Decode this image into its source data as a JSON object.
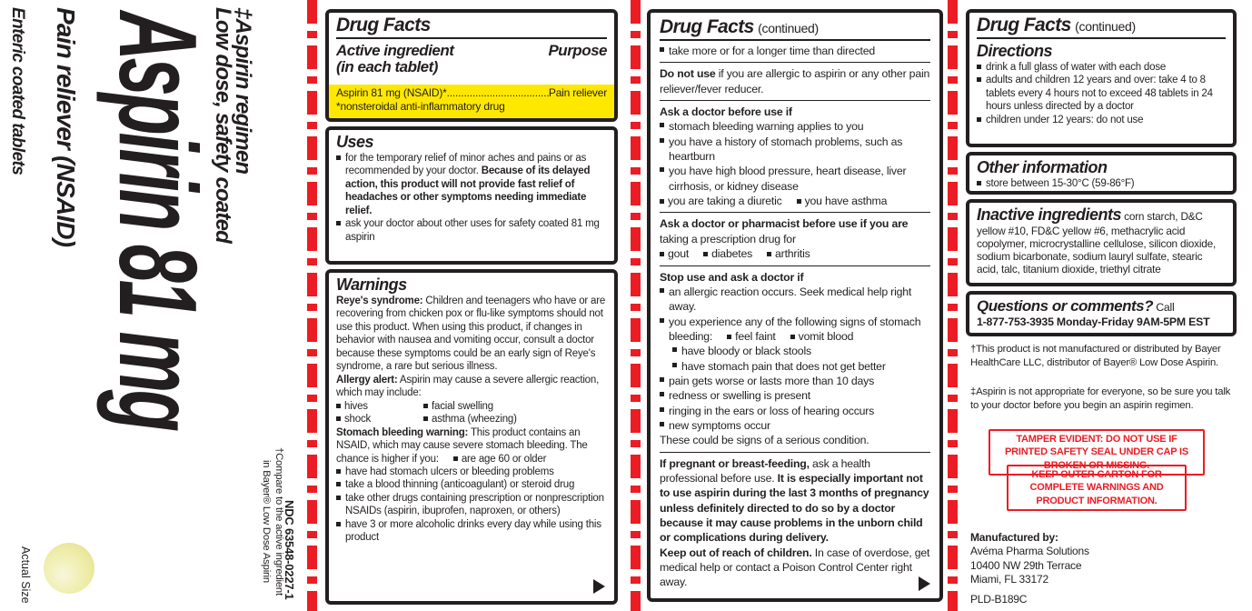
{
  "colors": {
    "highlight_yellow": "#FFE800",
    "perforation_red": "#EC1C24",
    "warning_red": "#EC1C24",
    "ink_black": "#231f20",
    "pill_yellow": "#eeeca6"
  },
  "brand_panel": {
    "enteric": "Enteric coated tablets",
    "pain_reliever": "Pain reliever (NSAID)",
    "title": "Aspirin 81 mg",
    "regimen_line1": "‡Aspirin regimen",
    "regimen_line2": "Low dose, safety coated",
    "ndc": "NDC 63548-0227-1",
    "compare_line1": "†Compare to the active ingredient",
    "compare_line2": "in Bayer® Low Dose Aspirin",
    "actual_size": "Actual Size"
  },
  "panel1": {
    "title": "Drug Facts",
    "active_heading_line1": "Active ingredient",
    "active_heading_line2": "(in each tablet)",
    "purpose_heading": "Purpose",
    "active_row": {
      "name": "Aspirin 81 mg (NSAID)*",
      "leader": "............................................................",
      "purpose": "Pain reliever"
    },
    "active_footnote": "*nonsteroidal anti-inflammatory drug",
    "uses": {
      "title": "Uses",
      "bullet1_normal": "for the temporary relief of minor aches and pains or as recommended by your doctor. ",
      "bullet1_bold": "Because of its delayed action, this product will not provide fast relief of headaches or other symptoms needing immediate relief.",
      "bullet2": "ask your doctor about other uses for safety coated 81 mg aspirin"
    },
    "warnings": {
      "title": "Warnings",
      "reye_label": "Reye's syndrome:",
      "reye_text": " Children and teenagers who have or are recovering from chicken pox or flu-like symptoms should not use this product. When using this product, if changes in behavior with nausea and vomiting occur, consult a doctor because these symptoms could be an early sign of Reye's syndrome, a rare but serious illness.",
      "allergy_label": "Allergy alert:",
      "allergy_text": " Aspirin may cause a severe allergic reaction, which may include:",
      "allergy_items": [
        "hives",
        "facial swelling",
        "shock",
        "asthma (wheezing)"
      ],
      "stomach_label": "Stomach bleeding warning:",
      "stomach_text": " This product contains an NSAID, which may cause severe stomach bleeding. The chance is higher if you:",
      "stomach_inline_item": "are age 60 or older",
      "stomach_items": [
        "have had stomach ulcers or bleeding problems",
        "take a blood thinning (anticoagulant) or steroid drug",
        "take other drugs containing prescription or nonprescription NSAIDs (aspirin, ibuprofen, naproxen, or others)",
        "have 3 or more alcoholic drinks every day while using this product"
      ]
    }
  },
  "panel2": {
    "title": "Drug Facts",
    "continued": "(continued)",
    "carryover_bullet": "take more or for a longer time than directed",
    "do_not_use_label": "Do not use",
    "do_not_use_text": " if you are allergic to aspirin or any other pain reliever/fever reducer.",
    "ask_doctor": {
      "heading": "Ask a doctor before use if",
      "items": [
        "stomach bleeding warning applies to you",
        "you have a history of stomach problems, such as heartburn",
        "you have high blood pressure, heart disease, liver cirrhosis, or kidney disease"
      ],
      "pair": [
        "you are taking a diuretic",
        "you have asthma"
      ]
    },
    "ask_pharmacist": {
      "heading_bold": "Ask a doctor or pharmacist before use if you are",
      "heading_normal": "taking a prescription drug for",
      "items": [
        "gout",
        "diabetes",
        "arthritis"
      ]
    },
    "stop_use": {
      "heading": "Stop use and ask a doctor if",
      "item1": "an allergic reaction occurs. Seek medical help right away.",
      "item2": "you experience any of the following signs of stomach bleeding:",
      "item2_pair": [
        "feel faint",
        "vomit blood"
      ],
      "item2_sub": [
        "have bloody or black stools",
        "have stomach pain that does not get better"
      ],
      "item3": "pain gets worse or lasts more than 10 days",
      "item4": "redness or swelling is present",
      "item5": "ringing in the ears or loss of hearing occurs",
      "item6": "new symptoms occur",
      "footer": "These could be signs of a serious condition."
    },
    "pregnant_label": "If pregnant or breast-feeding,",
    "pregnant_normal": " ask a health professional before use. ",
    "pregnant_bold": "It is especially important not to use aspirin during the last 3 months of pregnancy unless definitely directed to do so by a doctor because it may cause problems in the unborn child or complications during delivery.",
    "keep_label": "Keep out of reach of children.",
    "keep_text": " In case of overdose, get medical help or contact a Poison Control Center right away."
  },
  "panel3": {
    "title": "Drug Facts",
    "continued": "(continued)",
    "directions": {
      "title": "Directions",
      "item1": "drink a full glass of water with each dose",
      "item2": "adults and children 12 years and over: take 4 to 8 tablets every 4 hours not to exceed 48 tablets in 24 hours unless directed by a doctor",
      "item3": "children under 12 years: do not use"
    },
    "other_info": {
      "title": "Other information",
      "item": "store between 15-30°C (59-86°F)"
    },
    "inactive": {
      "title": "Inactive ingredients",
      "text": " corn starch, D&C yellow #10, FD&C yellow #6, methacrylic acid copolymer, microcrystalline cellulose, silicon dioxide, sodium bicarbonate, sodium lauryl sulfate, stearic acid, talc, titanium dioxide, triethyl citrate"
    },
    "questions": {
      "title": "Questions or comments?",
      "call": " Call",
      "phone_line": "1-877-753-3935 Monday-Friday 9AM-5PM EST"
    },
    "footnote_dagger": "†This product is not manufactured or distributed by Bayer HealthCare LLC, distributor of Bayer® Low Dose Aspirin.",
    "footnote_ddagger": "‡Aspirin is not appropriate for everyone, so be sure you talk to your doctor before you begin an aspirin regimen.",
    "tamper_box1": "TAMPER EVIDENT: DO NOT USE IF PRINTED SAFETY SEAL UNDER CAP IS BROKEN OR MISSING.",
    "tamper_box2": "KEEP OUTER CARTON FOR COMPLETE WARNINGS AND PRODUCT INFORMATION.",
    "manufactured": {
      "label": "Manufactured by:",
      "line1": "Avéma Pharma Solutions",
      "line2": "10400 NW 29th Terrace",
      "line3": "Miami, FL 33172"
    },
    "code": "PLD-B189C"
  }
}
